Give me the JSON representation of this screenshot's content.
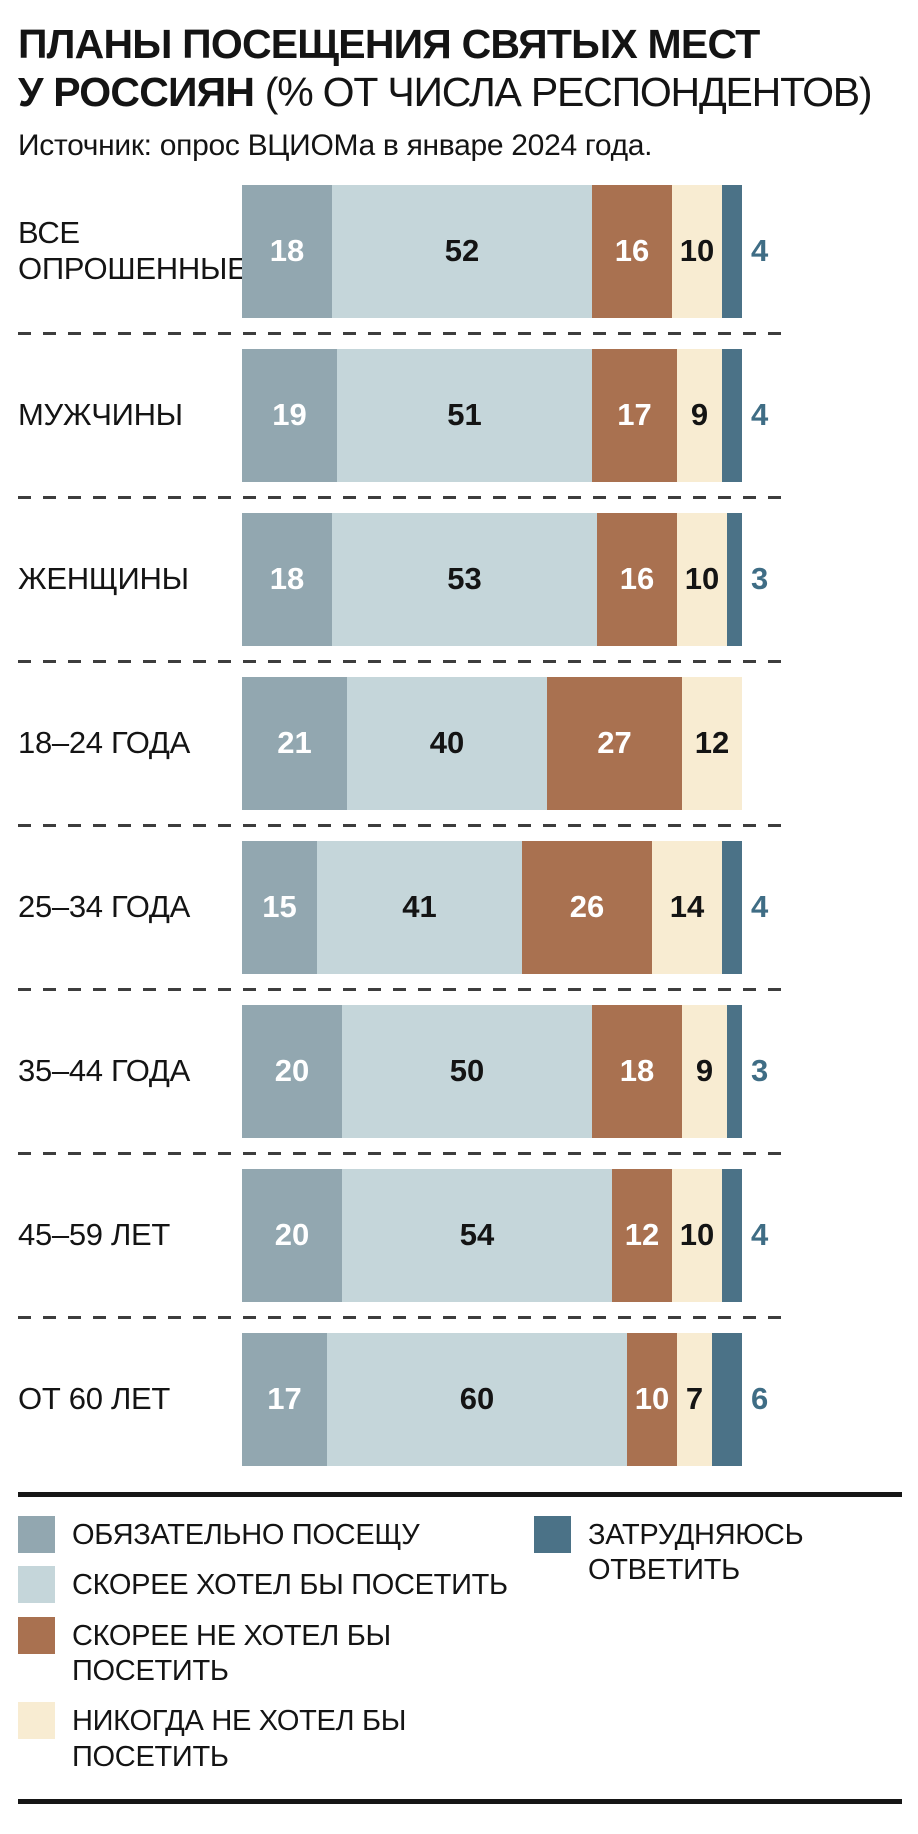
{
  "header": {
    "title_line1": "ПЛАНЫ ПОСЕЩЕНИЯ СВЯТЫХ МЕСТ",
    "title_bold": "У РОССИЯН",
    "title_note": "(% ОТ ЧИСЛА РЕСПОНДЕНТОВ)",
    "source": "Источник: опрос ВЦИОМа в январе 2024 года."
  },
  "chart_data": {
    "type": "bar",
    "orientation": "horizontal",
    "stacked": true,
    "unit": "%",
    "legend_position": "bottom",
    "xlim": [
      0,
      100
    ],
    "categories": [
      "ВСЕ ОПРОШЕННЫЕ",
      "МУЖЧИНЫ",
      "ЖЕНЩИНЫ",
      "18–24 ГОДА",
      "25–34 ГОДА",
      "35–44 ГОДА",
      "45–59 ЛЕТ",
      "ОТ 60 ЛЕТ"
    ],
    "series": [
      {
        "name": "ОБЯЗАТЕЛЬНО ПОСЕЩУ",
        "color": "#92a7b0",
        "label_color": "#ffffff",
        "legend_column": "left",
        "values": [
          18,
          19,
          18,
          21,
          15,
          20,
          20,
          17
        ]
      },
      {
        "name": "СКОРЕЕ ХОТЕЛ БЫ ПОСЕТИТЬ",
        "color": "#c5d6da",
        "label_color": "#141414",
        "legend_column": "left",
        "values": [
          52,
          51,
          53,
          40,
          41,
          50,
          54,
          60
        ]
      },
      {
        "name": "СКОРЕЕ НЕ ХОТЕЛ БЫ ПОСЕТИТЬ",
        "color": "#a97150",
        "label_color": "#ffffff",
        "legend_column": "left",
        "values": [
          16,
          17,
          16,
          27,
          26,
          18,
          12,
          10
        ]
      },
      {
        "name": "НИКОГДА НЕ ХОТЕЛ БЫ ПОСЕТИТЬ",
        "color": "#f8ecd2",
        "label_color": "#141414",
        "legend_column": "left",
        "values": [
          10,
          9,
          10,
          12,
          14,
          9,
          10,
          7
        ]
      },
      {
        "name": "ЗАТРУДНЯЮСЬ ОТВЕТИТЬ",
        "color": "#4b7287",
        "label_color": "#3f6d85",
        "label_position": "outside",
        "legend_column": "right",
        "values": [
          4,
          4,
          3,
          0,
          4,
          3,
          4,
          6
        ]
      }
    ]
  }
}
